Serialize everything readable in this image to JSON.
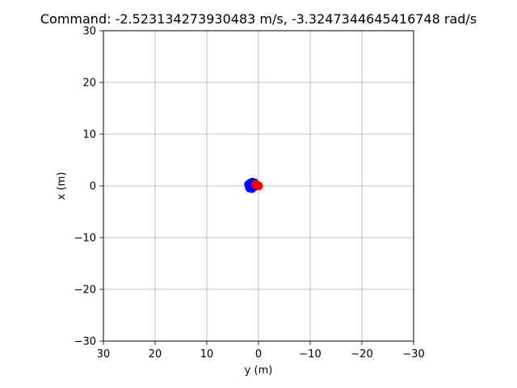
{
  "chart_data": {
    "type": "scatter",
    "title": "Command: -2.523134273930483 m/s, -3.3247344645416748 rad/s",
    "xlabel": "y (m)",
    "ylabel": "x (m)",
    "xlim": [
      30,
      -30
    ],
    "ylim": [
      -30,
      30
    ],
    "x_ticks": [
      30,
      20,
      10,
      0,
      -10,
      -20,
      -30
    ],
    "y_ticks": [
      -30,
      -20,
      -10,
      0,
      10,
      20,
      30
    ],
    "x_tick_labels": [
      "30",
      "20",
      "10",
      "0",
      "−10",
      "−20",
      "−30"
    ],
    "y_tick_labels": [
      "−30",
      "−20",
      "−10",
      "0",
      "10",
      "20",
      "30"
    ],
    "grid": true,
    "series": [
      {
        "color": "#0000ff",
        "marker": "circle",
        "points": [
          {
            "y": 1.6,
            "x": 0.2
          },
          {
            "y": 1.8,
            "x": -0.1
          },
          {
            "y": 1.7,
            "x": -0.4
          },
          {
            "y": 1.3,
            "x": -0.5
          },
          {
            "y": 0.9,
            "x": -0.2
          },
          {
            "y": 0.7,
            "x": 0.2
          },
          {
            "y": 0.8,
            "x": 0.6
          },
          {
            "y": 1.2,
            "x": 0.7
          },
          {
            "y": 1.6,
            "x": 0.5
          },
          {
            "y": 1.9,
            "x": 0.3
          },
          {
            "y": 1.3,
            "x": 0.0
          }
        ]
      },
      {
        "color": "#ff0000",
        "marker": "circle",
        "points": [
          {
            "y": 0.0,
            "x": 0.0
          },
          {
            "y": 0.5,
            "x": 0.3
          }
        ]
      }
    ]
  }
}
